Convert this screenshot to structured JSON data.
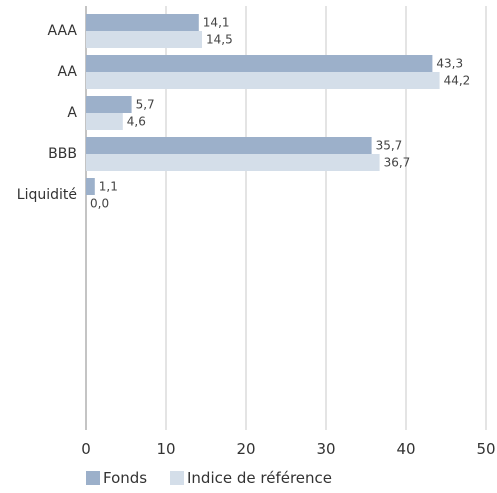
{
  "chart_data": {
    "type": "bar",
    "orientation": "horizontal",
    "categories": [
      "AAA",
      "AA",
      "A",
      "BBB",
      "Liquidité"
    ],
    "series": [
      {
        "name": "Fonds",
        "values": [
          14.1,
          43.3,
          5.7,
          35.7,
          1.1
        ],
        "labels": [
          "14,1",
          "43,3",
          "5,7",
          "35,7",
          "1,1"
        ],
        "color": "#9cb0ca"
      },
      {
        "name": "Indice de référence",
        "values": [
          14.5,
          44.2,
          4.6,
          36.7,
          0.0
        ],
        "labels": [
          "14,5",
          "44,2",
          "4,6",
          "36,7",
          "0,0"
        ],
        "color": "#d4dee9"
      }
    ],
    "xlim": [
      0,
      50
    ],
    "xticks": [
      0,
      10,
      20,
      30,
      40,
      50
    ],
    "xtick_labels": [
      "0",
      "10",
      "20",
      "30",
      "40",
      "50"
    ],
    "grid": "vertical",
    "legend": "bottom-left"
  }
}
